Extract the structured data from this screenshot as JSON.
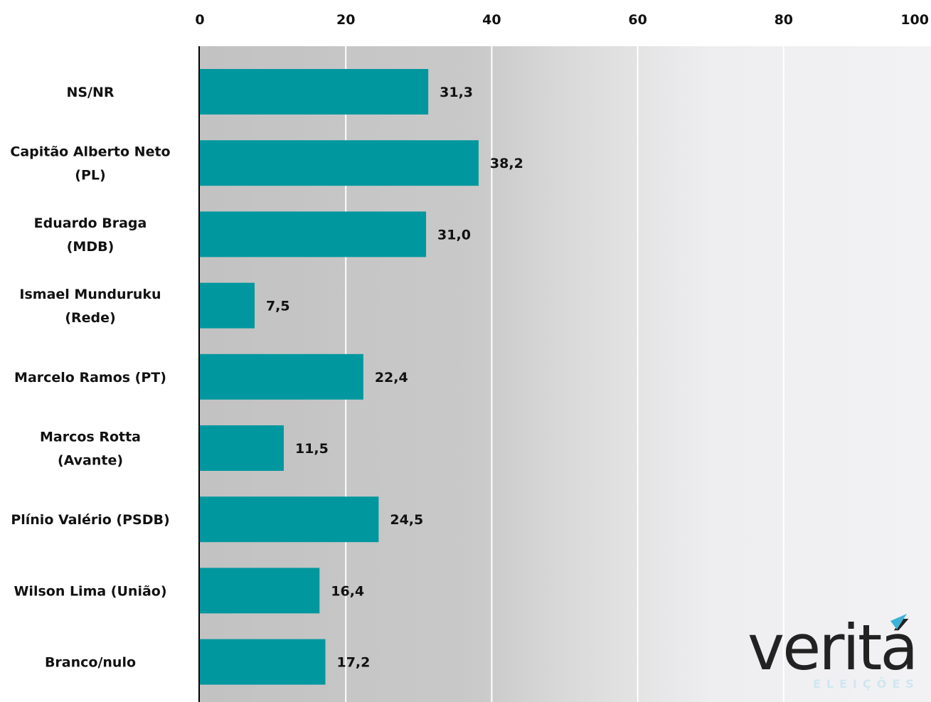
{
  "chart_data": {
    "type": "bar",
    "orientation": "horizontal",
    "categories": [
      [
        "NS/NR"
      ],
      [
        "Capitão Alberto Neto",
        "(PL)"
      ],
      [
        "Eduardo Braga",
        "(MDB)"
      ],
      [
        "Ismael Munduruku",
        "(Rede)"
      ],
      [
        "Marcelo Ramos (PT)"
      ],
      [
        "Marcos Rotta",
        "(Avante)"
      ],
      [
        "Plínio Valério (PSDB)"
      ],
      [
        "Wilson Lima (União)"
      ],
      [
        "Branco/nulo"
      ]
    ],
    "values": [
      31.3,
      38.2,
      31.0,
      7.5,
      22.4,
      11.5,
      24.5,
      16.4,
      17.2
    ],
    "value_labels": [
      "31,3",
      "38,2",
      "31,0",
      "7,5",
      "22,4",
      "11,5",
      "24,5",
      "16,4",
      "17,2"
    ],
    "xlim": [
      0,
      100
    ],
    "xticks": [
      0,
      20,
      40,
      60,
      80,
      100
    ],
    "xtick_labels": [
      "0",
      "20",
      "40",
      "60",
      "80",
      "100"
    ],
    "axis_position": "top",
    "grid": true,
    "bar_color": "#00979e",
    "background": "gradient dark grey (left) to light grey (right)",
    "title": "",
    "xlabel": "",
    "ylabel": ""
  },
  "logo": {
    "word": "veritá",
    "sub": "ELEIÇÕES",
    "accent_color": "#3bb3d6"
  }
}
